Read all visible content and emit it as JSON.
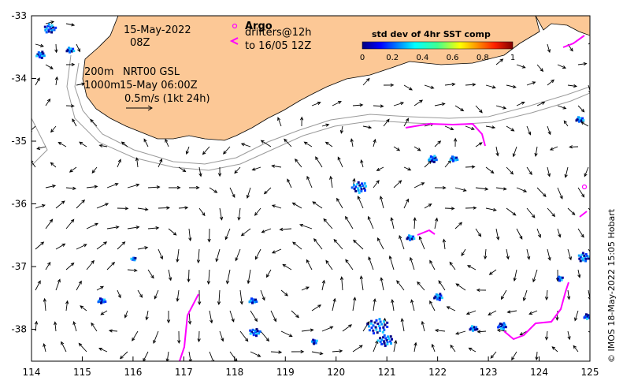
{
  "map": {
    "date": "15-May-2022",
    "hour": "08Z",
    "legend_title": "Argo",
    "drifters_line1": "drifters@12h",
    "drifters_line2": "to 16/05 12Z",
    "depth_line1": "200m",
    "depth_line2": "1000m",
    "product": "NRT00 GSL",
    "product_time": "15-May 06:00Z",
    "scale_label": "0.5m/s (1kt 24h)",
    "colorbar_title": "std dev of 4hr SST comp",
    "colorbar_ticks": [
      "0",
      "0.2",
      "0.4",
      "0.6",
      "0.8",
      "1"
    ],
    "credit": "© IMOS 18-May-2022 15:05 Hobart",
    "x_ticks": [
      "114",
      "115",
      "116",
      "117",
      "118",
      "119",
      "120",
      "121",
      "122",
      "123",
      "124",
      "125"
    ],
    "y_ticks": [
      "-33",
      "-34",
      "-35",
      "-36",
      "-37",
      "-38"
    ],
    "colors": {
      "land": "#fcc896",
      "drifter": "#ff00ff",
      "isobath": "#9a9a9a",
      "arrow": "#000000"
    }
  }
}
